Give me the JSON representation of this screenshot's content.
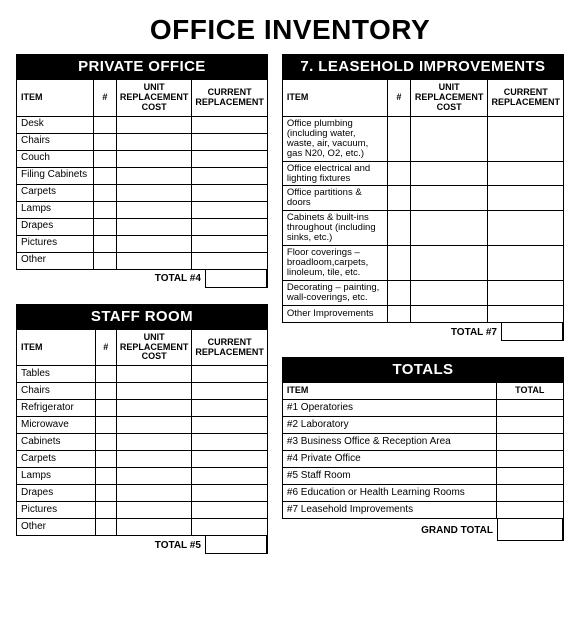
{
  "title": "OFFICE INVENTORY",
  "headers": {
    "item": "ITEM",
    "qty": "#",
    "unit_cost": "UNIT REPLACEMENT COST",
    "current": "CURRENT REPLACEMENT"
  },
  "private_office": {
    "title": "PRIVATE OFFICE",
    "rows": [
      "Desk",
      "Chairs",
      "Couch",
      "Filing Cabinets",
      "Carpets",
      "Lamps",
      "Drapes",
      "Pictures",
      "Other"
    ],
    "total_label": "TOTAL #4"
  },
  "staff_room": {
    "title": "STAFF ROOM",
    "rows": [
      "Tables",
      "Chairs",
      "Refrigerator",
      "Microwave",
      "Cabinets",
      "Carpets",
      "Lamps",
      "Drapes",
      "Pictures",
      "Other"
    ],
    "total_label": "TOTAL #5"
  },
  "leasehold": {
    "title": "7.  LEASEHOLD IMPROVEMENTS",
    "rows": [
      "Office plumbing (including water, waste, air, vacuum, gas N20, O2, etc.)",
      "Office electrical and lighting fixtures",
      "Office partitions & doors",
      "Cabinets & built-ins throughout (including sinks, etc.)",
      "Floor coverings – broadloom,carpets, linoleum, tile, etc.",
      "Decorating – painting, wall-coverings, etc.",
      "Other Improvements"
    ],
    "total_label": "TOTAL #7"
  },
  "totals": {
    "title": "TOTALS",
    "item_h": "ITEM",
    "total_h": "TOTAL",
    "rows": [
      "#1   Operatories",
      "#2   Laboratory",
      "#3   Business Office & Reception Area",
      "#4   Private Office",
      "#5   Staff Room",
      "#6   Education or Health Learning Rooms",
      "#7   Leasehold Improvements"
    ],
    "grand_label": "GRAND TOTAL"
  },
  "col_widths": {
    "item": "38%",
    "qty": "12%",
    "unit": "28%",
    "curr": "22%"
  },
  "totals_col_widths": {
    "item": "76%",
    "total": "24%"
  }
}
